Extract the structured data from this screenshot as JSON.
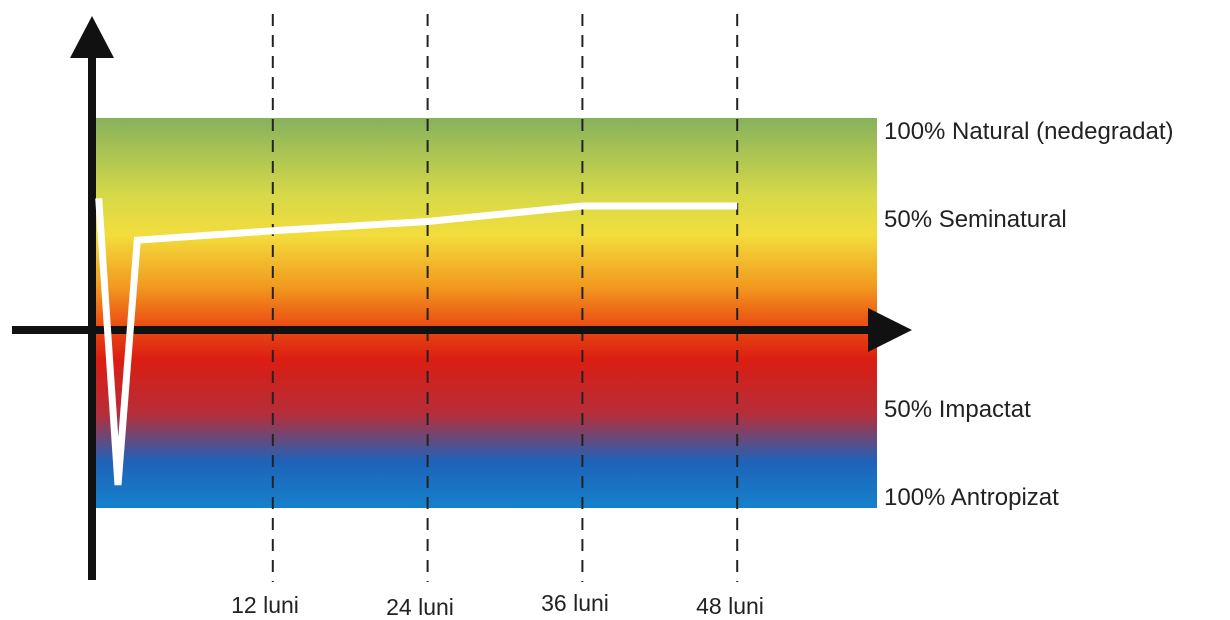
{
  "chart_data": {
    "type": "line",
    "x_ticks": [
      {
        "value": 12,
        "label": "12 luni"
      },
      {
        "value": 24,
        "label": "24 luni"
      },
      {
        "value": 36,
        "label": "36 luni"
      },
      {
        "value": 48,
        "label": "48 luni"
      }
    ],
    "band_labels": [
      {
        "value": 100,
        "label": "100% Natural (nedegradat)"
      },
      {
        "value": 50,
        "label": "50% Seminatural"
      },
      {
        "value": -50,
        "label": "50% Impactat"
      },
      {
        "value": -100,
        "label": "100% Antropizat"
      }
    ],
    "series": [
      {
        "points": [
          {
            "x": -1.5,
            "y": 85
          },
          {
            "x": 0,
            "y": -100
          },
          {
            "x": 1.5,
            "y": 58
          },
          {
            "x": 12,
            "y": 64
          },
          {
            "x": 24,
            "y": 70
          },
          {
            "x": 36,
            "y": 80
          },
          {
            "x": 48,
            "y": 80
          }
        ]
      }
    ],
    "ylim": [
      -100,
      100
    ],
    "xlim": [
      -3,
      60
    ],
    "colors": {
      "gradient": [
        "#86b15d",
        "#d7d948",
        "#f2dd3c",
        "#f29b1f",
        "#ea4f13",
        "#db1d12",
        "#b52e3a",
        "#1f62b8",
        "#1581cc"
      ],
      "axis": "#111111",
      "line": "#ffffff",
      "gridline": "#222222"
    },
    "grid": "dashed vertical lines at ticks"
  }
}
